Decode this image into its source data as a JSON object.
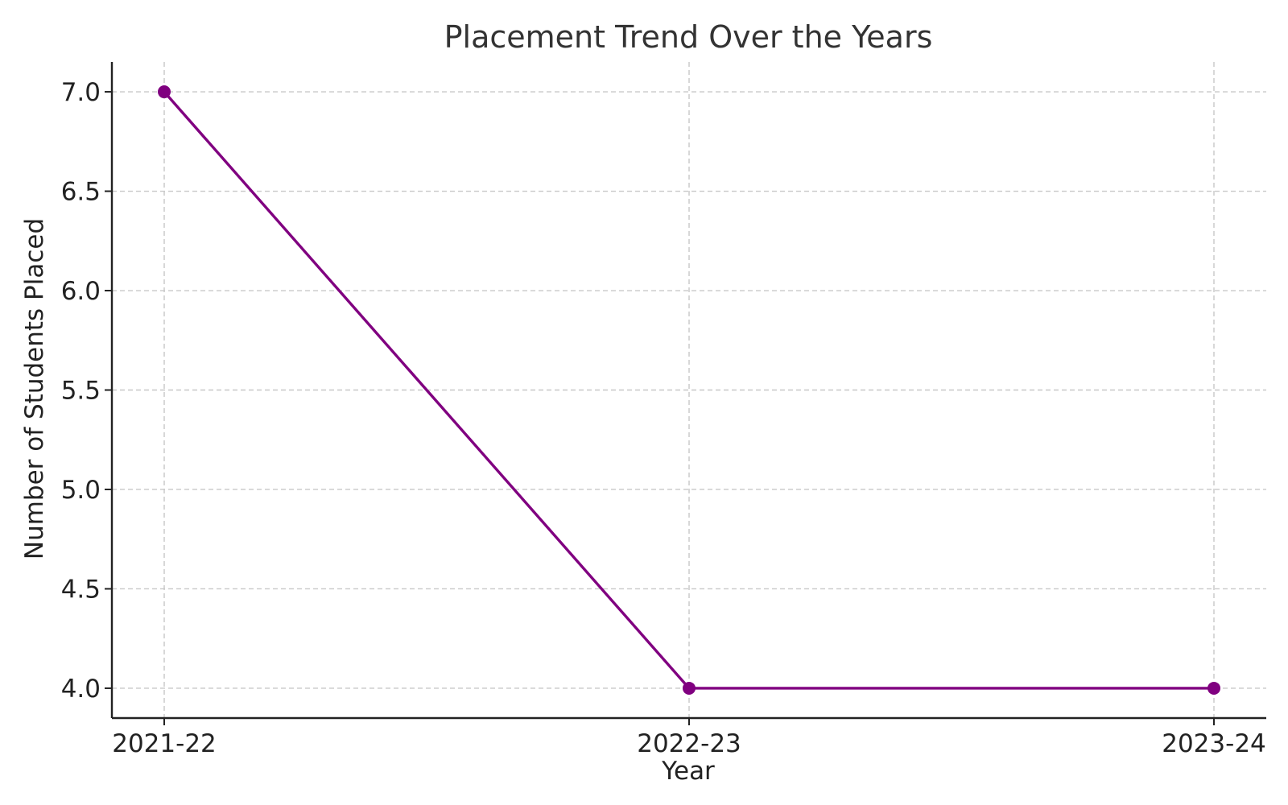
{
  "chart_data": {
    "type": "line",
    "title": "Placement Trend Over the Years",
    "xlabel": "Year",
    "ylabel": "Number of Students Placed",
    "categories": [
      "2021-22",
      "2022-23",
      "2023-24"
    ],
    "series": [
      {
        "values": [
          7,
          4,
          4
        ],
        "color": "#800080",
        "marker": "circle"
      }
    ],
    "ylim": [
      3.85,
      7.15
    ],
    "yticks": [
      4.0,
      4.5,
      5.0,
      5.5,
      6.0,
      6.5,
      7.0
    ],
    "ytick_labels": [
      "4.0",
      "4.5",
      "5.0",
      "5.5",
      "6.0",
      "6.5",
      "7.0"
    ],
    "grid": true,
    "grid_style": "dashed"
  }
}
